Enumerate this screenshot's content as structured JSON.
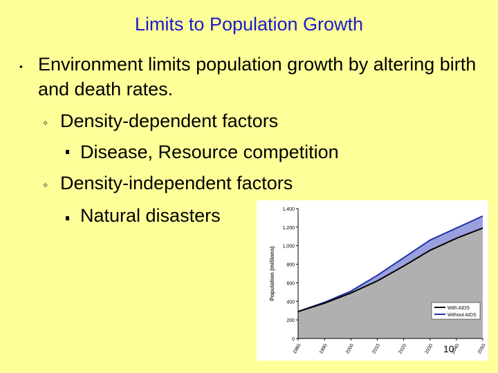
{
  "slide": {
    "title": "Limits to Population Growth",
    "main_point": "Environment limits population growth by altering birth and death rates.",
    "bullets": [
      {
        "label": "Density-dependent factors",
        "sub": "Disease, Resource competition"
      },
      {
        "label": "Density-independent factors",
        "sub": "Natural disasters"
      }
    ],
    "page_number": "10"
  },
  "chart_data": {
    "type": "area",
    "ylabel": "Population (millions)",
    "xlabel": "",
    "x": [
      1980,
      1990,
      2000,
      2010,
      2020,
      2030,
      2040,
      2050
    ],
    "x_tick_labels": [
      "1980",
      "1990",
      "2000",
      "2010",
      "2020",
      "2030",
      "2040",
      "2050"
    ],
    "y_ticks": [
      0,
      200,
      400,
      600,
      800,
      1000,
      1200,
      1400
    ],
    "y_tick_labels": [
      "0",
      "200",
      "400",
      "600",
      "800",
      "1,000",
      "1,200",
      "1,400"
    ],
    "ylim": [
      0,
      1400
    ],
    "legend_position": "bottom-right",
    "series": [
      {
        "name": "With AIDS",
        "color": "#000000",
        "values": [
          290,
          380,
          490,
          620,
          780,
          950,
          1080,
          1190
        ]
      },
      {
        "name": "Without AIDS",
        "color": "#2233aa",
        "values": [
          290,
          390,
          510,
          680,
          870,
          1060,
          1190,
          1320
        ]
      }
    ]
  }
}
